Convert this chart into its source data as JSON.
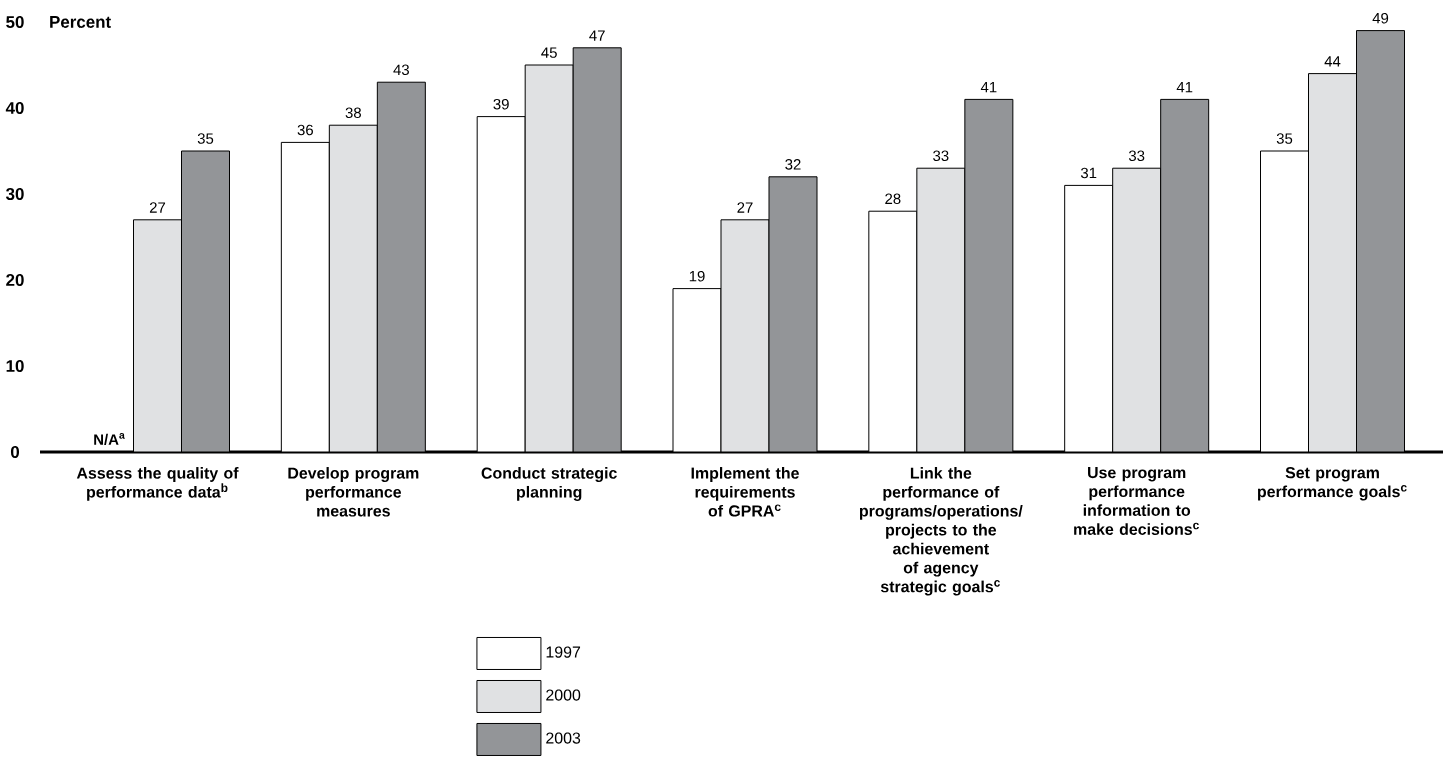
{
  "chart_data": {
    "type": "bar",
    "ylabel": "Percent",
    "categories": [
      "Assess the quality of performance data$^{b}$",
      "Develop program performance measures",
      "Conduct strategic planning",
      "Implement the requirements of GPRA$^{c}$",
      "Link the performance of programs/operations/ projects to the achievement of agency strategic goals$^{c}$",
      "Use program performance information to make decisions$^{c}$",
      "Set program performance goals$^{c}$"
    ],
    "series": [
      {
        "name": "1997",
        "color": "#ffffff",
        "values": [
          null,
          36,
          39,
          19,
          28,
          31,
          35
        ],
        "value_labels": [
          "N/A$^{a}$",
          "36",
          "39",
          "19",
          "28",
          "31",
          "35"
        ]
      },
      {
        "name": "2000",
        "color": "#e0e1e3",
        "values": [
          27,
          38,
          45,
          27,
          33,
          33,
          44
        ],
        "value_labels": [
          "27",
          "38",
          "45",
          "27",
          "33",
          "33",
          "44"
        ]
      },
      {
        "name": "2003",
        "color": "#939598",
        "values": [
          35,
          43,
          47,
          32,
          41,
          41,
          49
        ],
        "value_labels": [
          "35",
          "43",
          "47",
          "32",
          "41",
          "41",
          "49"
        ]
      }
    ],
    "ylim": [
      0,
      50
    ],
    "yticks": [
      0,
      10,
      20,
      30,
      40,
      50
    ],
    "grid": false,
    "legend": "bottom"
  }
}
